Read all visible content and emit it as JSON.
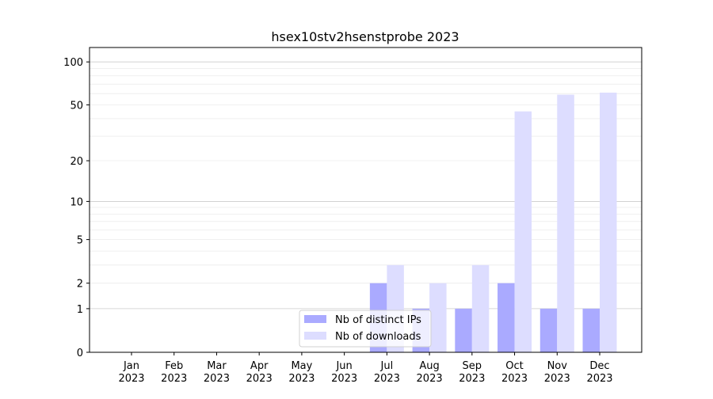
{
  "chart_data": {
    "type": "bar",
    "title": "hsex10stv2hsenstprobe 2023",
    "xlabel": "",
    "ylabel": "",
    "yscale": "log(1+y)",
    "ylim": [
      0,
      120
    ],
    "yticks": [
      0,
      1,
      2,
      5,
      10,
      20,
      50,
      100
    ],
    "grid": true,
    "legend_position": "bottom-center",
    "categories": [
      "Jan\n2023",
      "Feb\n2023",
      "Mar\n2023",
      "Apr\n2023",
      "May\n2023",
      "Jun\n2023",
      "Jul\n2023",
      "Aug\n2023",
      "Sep\n2023",
      "Oct\n2023",
      "Nov\n2023",
      "Dec\n2023"
    ],
    "series": [
      {
        "name": "Nb of distinct IPs",
        "color": "#aaaaff",
        "values": [
          0,
          0,
          0,
          0,
          0,
          0,
          2,
          1,
          1,
          2,
          1,
          1
        ]
      },
      {
        "name": "Nb of downloads",
        "color": "#ddddff",
        "values": [
          0,
          0,
          0,
          0,
          0,
          0,
          3,
          2,
          3,
          45,
          59,
          61
        ]
      }
    ]
  }
}
